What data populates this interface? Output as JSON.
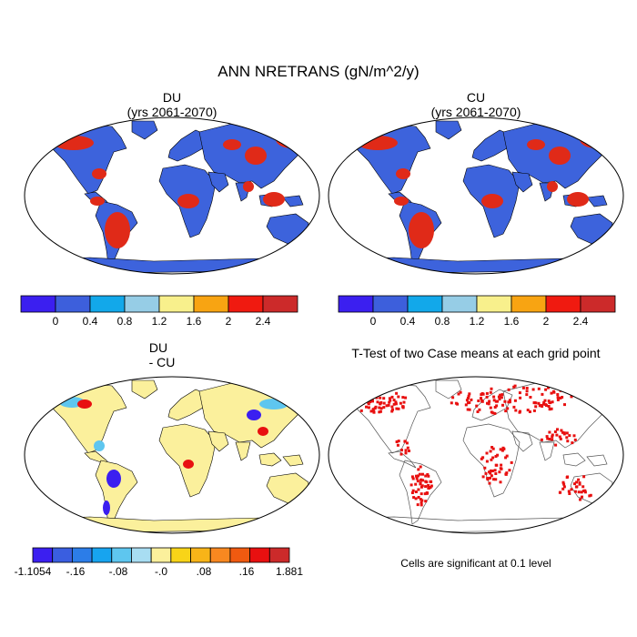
{
  "title": "ANN NRETRANS (gN/m^2/y)",
  "panels": {
    "du": {
      "title": "DU",
      "subtitle": "(yrs 2061-2070)"
    },
    "cu": {
      "title": "CU",
      "subtitle": "(yrs 2061-2070)"
    },
    "diff": {
      "title": "DU",
      "subtitle": "- CU"
    },
    "ttest": {
      "title": "T-Test of two Case means at each grid point",
      "footnote": "Cells are significant at 0.1 level"
    }
  },
  "colorbars": {
    "main": {
      "colors": [
        "#3b1ff0",
        "#3d5fdc",
        "#12a8ea",
        "#96cde6",
        "#f8f08c",
        "#f8a412",
        "#f01a10",
        "#cc2a2a"
      ],
      "labels": [
        "0",
        "0.4",
        "0.8",
        "1.2",
        "1.6",
        "2",
        "2.4"
      ]
    },
    "diff": {
      "colors": [
        "#3b1ff0",
        "#3a5ee0",
        "#2c7de8",
        "#17a4ef",
        "#5ec6ef",
        "#a8ddf2",
        "#fbf09c",
        "#f8d418",
        "#f8b418",
        "#f88820",
        "#f05a10",
        "#e81010",
        "#cc2a2a"
      ],
      "labels": [
        "-1.1054",
        "-.16",
        "-.08",
        "-.0",
        ".08",
        ".16",
        "1.881"
      ]
    }
  },
  "ttest_color": "#e81010",
  "map_colors": {
    "base": "#3d63dc",
    "warm": "#e02a18",
    "diff_base": "#fbf09c"
  }
}
